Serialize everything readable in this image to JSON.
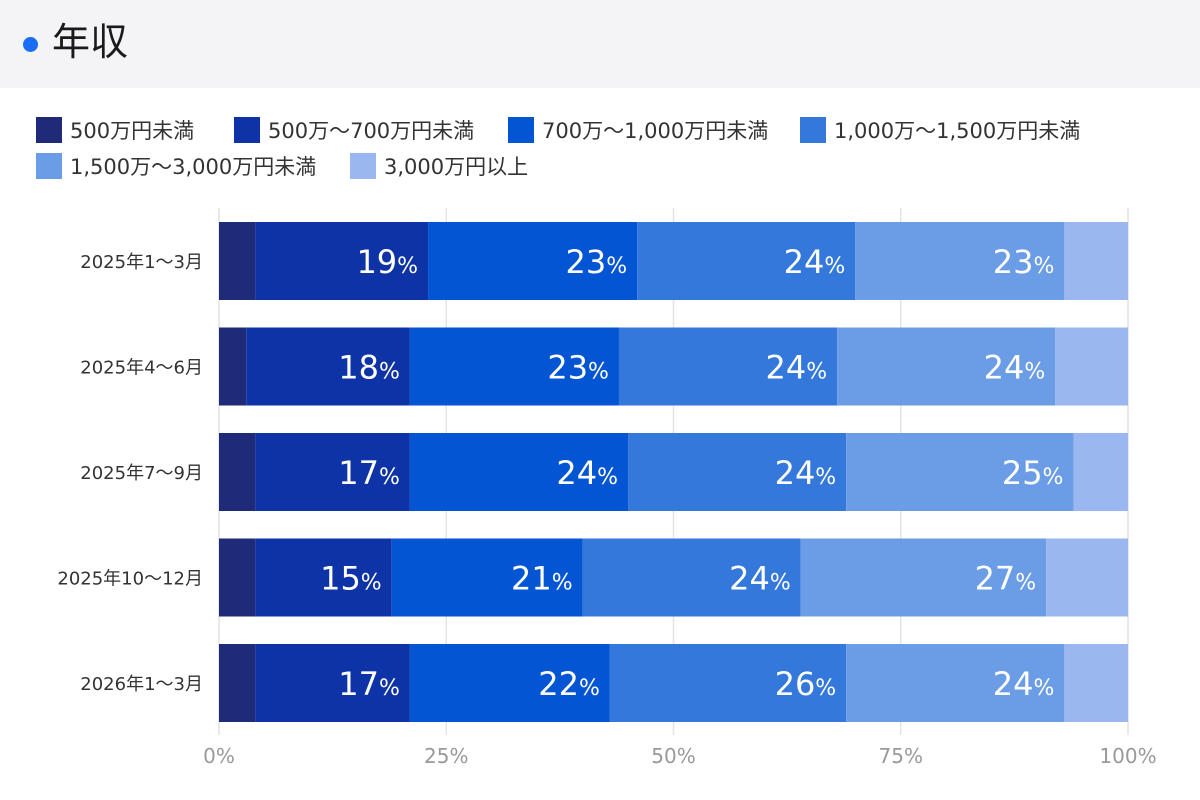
{
  "header": {
    "title": "年収"
  },
  "chart_data": {
    "type": "bar",
    "orientation": "horizontal",
    "stacked": true,
    "percent": true,
    "categories": [
      "2025年1〜3月",
      "2025年4〜6月",
      "2025年7〜9月",
      "2025年10〜12月",
      "2026年1〜3月"
    ],
    "series": [
      {
        "name": "500万円未満",
        "color": "#1f2a78",
        "values": [
          4,
          3,
          4,
          4,
          4
        ]
      },
      {
        "name": "500万〜700万円未満",
        "color": "#0e33a6",
        "values": [
          19,
          18,
          17,
          15,
          17
        ]
      },
      {
        "name": "700万〜1,000万円未満",
        "color": "#0455d4",
        "values": [
          23,
          23,
          24,
          21,
          22
        ]
      },
      {
        "name": "1,000万〜1,500万円未満",
        "color": "#3478dc",
        "values": [
          24,
          24,
          24,
          24,
          26
        ]
      },
      {
        "name": "1,500万〜3,000万円未満",
        "color": "#6b9ce6",
        "values": [
          23,
          24,
          25,
          27,
          24
        ]
      },
      {
        "name": "3,000万円以上",
        "color": "#9ab8ef",
        "values": [
          7,
          8,
          6,
          9,
          7
        ]
      }
    ],
    "data_labels": {
      "500万〜700万円未満": [
        "19",
        "18",
        "17",
        "15",
        "17"
      ],
      "700万〜1,000万円未満": [
        "23",
        "23",
        "24",
        "21",
        "22"
      ],
      "1,000万〜1,500万円未満": [
        "24",
        "24",
        "24",
        "24",
        "26"
      ],
      "1,500万〜3,000万円未満": [
        "23",
        "24",
        "25",
        "27",
        "24"
      ]
    },
    "percent_sign": "%",
    "x_ticks": [
      "0%",
      "25%",
      "50%",
      "75%",
      "100%"
    ],
    "xlim": [
      0,
      100
    ],
    "grid": true,
    "legend_position": "top"
  }
}
